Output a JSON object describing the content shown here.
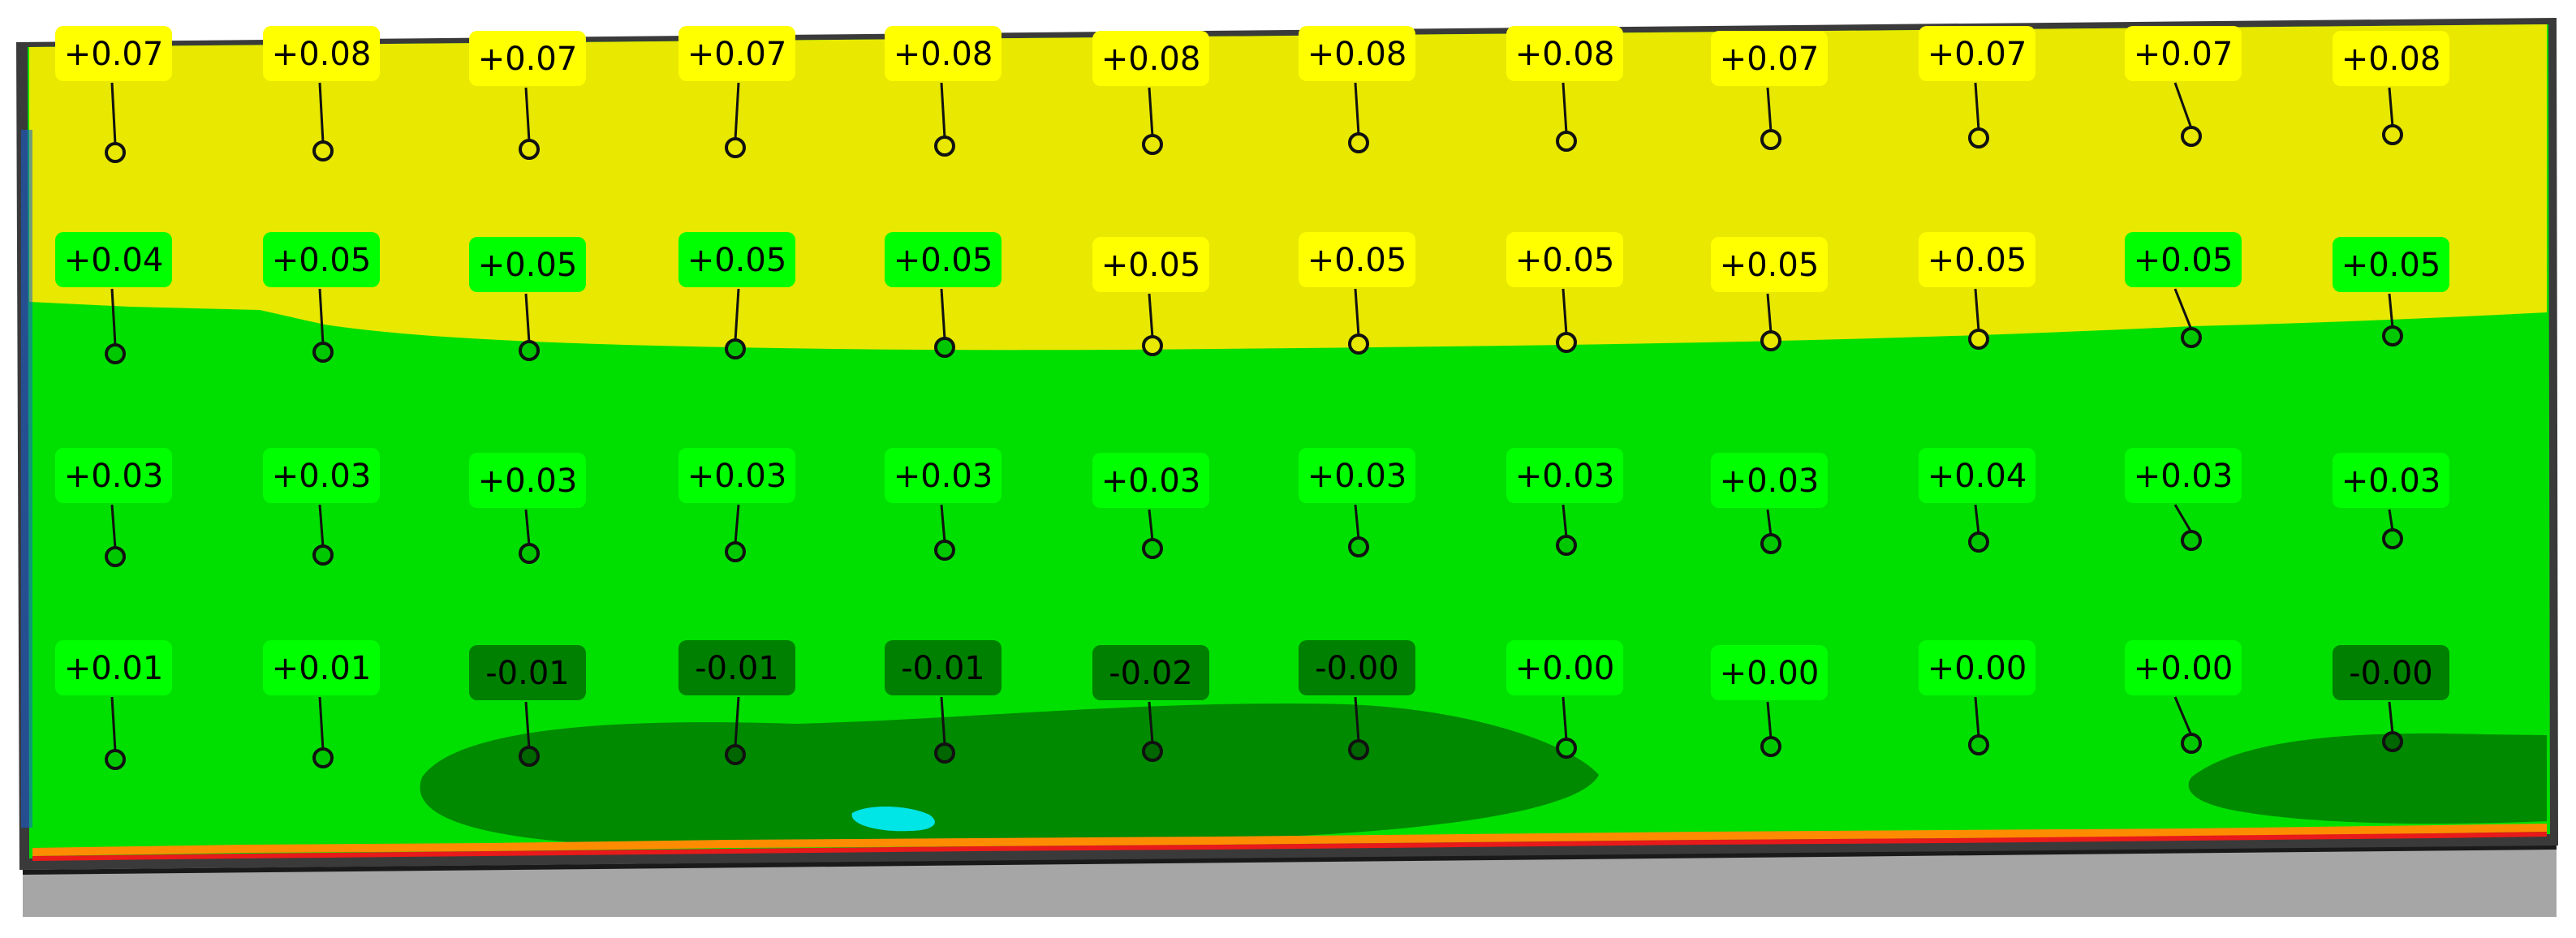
{
  "colors": {
    "yellow": "#e8e800",
    "green": "#00e000",
    "dark_green": "#008a00",
    "label_yellow": "#ffff00",
    "label_green": "#00ff00",
    "label_dark_green": "#008000",
    "cyan": "#00e5e5",
    "base_gray": "#a6a6a6",
    "edge_red": "#e81a1a",
    "edge_orange": "#ff8c00"
  },
  "points": [
    {
      "label": "+0.07",
      "tone": "yellow"
    },
    {
      "label": "+0.08",
      "tone": "yellow"
    },
    {
      "label": "+0.07",
      "tone": "yellow"
    },
    {
      "label": "+0.07",
      "tone": "yellow"
    },
    {
      "label": "+0.08",
      "tone": "yellow"
    },
    {
      "label": "+0.08",
      "tone": "yellow"
    },
    {
      "label": "+0.08",
      "tone": "yellow"
    },
    {
      "label": "+0.08",
      "tone": "yellow"
    },
    {
      "label": "+0.07",
      "tone": "yellow"
    },
    {
      "label": "+0.07",
      "tone": "yellow"
    },
    {
      "label": "+0.07",
      "tone": "yellow"
    },
    {
      "label": "+0.08",
      "tone": "yellow"
    },
    {
      "label": "+0.04",
      "tone": "green"
    },
    {
      "label": "+0.05",
      "tone": "green"
    },
    {
      "label": "+0.05",
      "tone": "green"
    },
    {
      "label": "+0.05",
      "tone": "green"
    },
    {
      "label": "+0.05",
      "tone": "green"
    },
    {
      "label": "+0.05",
      "tone": "yellow"
    },
    {
      "label": "+0.05",
      "tone": "yellow"
    },
    {
      "label": "+0.05",
      "tone": "yellow"
    },
    {
      "label": "+0.05",
      "tone": "yellow"
    },
    {
      "label": "+0.05",
      "tone": "yellow"
    },
    {
      "label": "+0.05",
      "tone": "green"
    },
    {
      "label": "+0.05",
      "tone": "green"
    },
    {
      "label": "+0.03",
      "tone": "green"
    },
    {
      "label": "+0.03",
      "tone": "green"
    },
    {
      "label": "+0.03",
      "tone": "green"
    },
    {
      "label": "+0.03",
      "tone": "green"
    },
    {
      "label": "+0.03",
      "tone": "green"
    },
    {
      "label": "+0.03",
      "tone": "green"
    },
    {
      "label": "+0.03",
      "tone": "green"
    },
    {
      "label": "+0.03",
      "tone": "green"
    },
    {
      "label": "+0.03",
      "tone": "green"
    },
    {
      "label": "+0.04",
      "tone": "green"
    },
    {
      "label": "+0.03",
      "tone": "green"
    },
    {
      "label": "+0.03",
      "tone": "green"
    },
    {
      "label": "+0.01",
      "tone": "green"
    },
    {
      "label": "+0.01",
      "tone": "green"
    },
    {
      "label": "-0.01",
      "tone": "dark"
    },
    {
      "label": "-0.01",
      "tone": "dark"
    },
    {
      "label": "-0.01",
      "tone": "dark"
    },
    {
      "label": "-0.02",
      "tone": "dark"
    },
    {
      "label": "-0.00",
      "tone": "dark"
    },
    {
      "label": "+0.00",
      "tone": "green"
    },
    {
      "label": "+0.00",
      "tone": "green"
    },
    {
      "label": "+0.00",
      "tone": "green"
    },
    {
      "label": "+0.00",
      "tone": "green"
    },
    {
      "label": "-0.00",
      "tone": "dark"
    }
  ]
}
